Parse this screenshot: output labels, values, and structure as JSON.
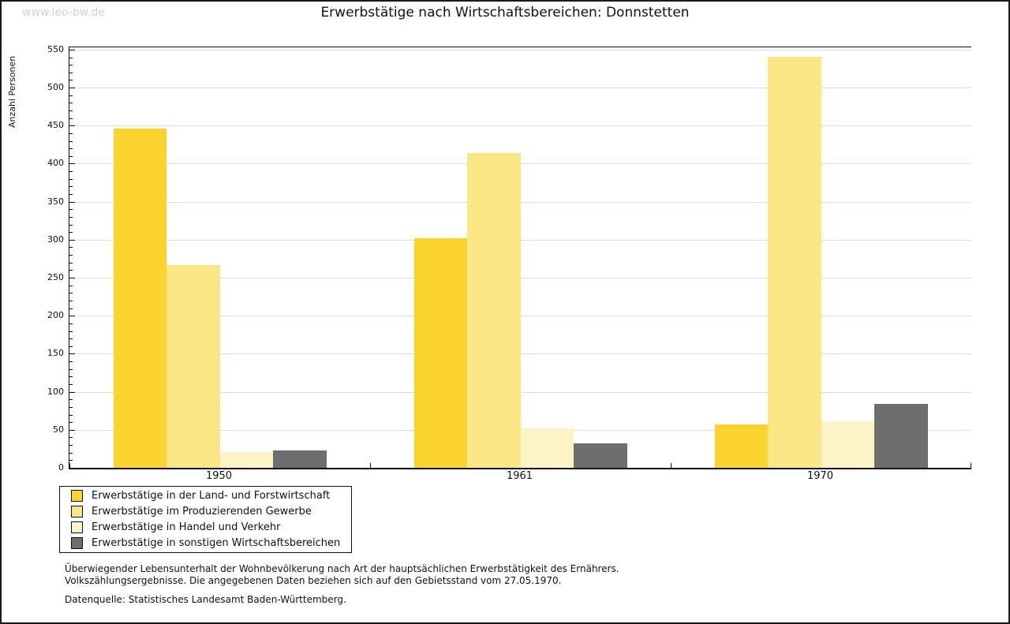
{
  "page": {
    "watermark": "www.leo-bw.de",
    "title": "Erwerbstätige nach Wirtschaftsbereichen: Donnstetten",
    "footer_line1": "Überwiegender Lebensunterhalt der Wohnbevölkerung nach Art der hauptsächlichen Erwerbstätigkeit des Ernährers.",
    "footer_line2": "Volkszählungsergebnisse. Die angegebenen Daten beziehen sich auf den Gebietsstand vom 27.05.1970.",
    "footer_source": "Datenquelle: Statistisches Landesamt Baden-Württemberg."
  },
  "colors": {
    "grid": "#dcdcdc",
    "axis": "#111111",
    "watermark": "#d2d2d2"
  },
  "chart_data": {
    "type": "bar",
    "title": "Erwerbstätige nach Wirtschaftsbereichen: Donnstetten",
    "categories": [
      "1950",
      "1961",
      "1970"
    ],
    "series": [
      {
        "name": "Erwerbstätige in der Land- und Forstwirtschaft",
        "color": "#fbd32d",
        "values": [
          446,
          302,
          57
        ]
      },
      {
        "name": "Erwerbstätige im Produzierenden Gewerbe",
        "color": "#fbe685",
        "values": [
          267,
          414,
          541
        ]
      },
      {
        "name": "Erwerbstätige in Handel und Verkehr",
        "color": "#fcf3c6",
        "values": [
          21,
          52,
          61
        ]
      },
      {
        "name": "Erwerbstätige in sonstigen Wirtschaftsbereichen",
        "color": "#6e6e6e",
        "values": [
          23,
          32,
          84
        ]
      }
    ],
    "xlabel": "",
    "ylabel": "Anzahl Personen",
    "ylim": [
      0,
      550
    ],
    "ytick_step": 50,
    "ytick_minor_step": 10,
    "grid": true,
    "legend_position": "bottom-left"
  }
}
